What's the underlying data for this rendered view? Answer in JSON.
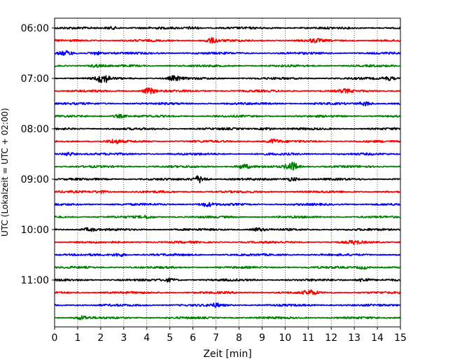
{
  "chart_data": {
    "type": "line",
    "title": "",
    "xlabel": "Zeit  [min]",
    "ylabel": "UTC (Lokalzeit = UTC + 02:00)",
    "xlim": [
      0,
      15
    ],
    "x_ticks": [
      "0",
      "1",
      "2",
      "3",
      "4",
      "5",
      "6",
      "7",
      "8",
      "9",
      "10",
      "11",
      "12",
      "13",
      "14",
      "15"
    ],
    "y_ticks": [
      "06:00",
      "07:00",
      "08:00",
      "09:00",
      "10:00",
      "11:00"
    ],
    "grid": "vertical dotted",
    "trace_interval_minutes": 15,
    "color_cycle": [
      "#000000",
      "#ff0000",
      "#0000ff",
      "#008000"
    ],
    "series": [
      {
        "start": "06:00",
        "color": "#000000",
        "events": [
          [
            2.5,
            1.0
          ],
          [
            6.0,
            1.0
          ]
        ]
      },
      {
        "start": "06:15",
        "color": "#ff0000",
        "events": [
          [
            6.8,
            2.0
          ],
          [
            11.3,
            1.3
          ]
        ]
      },
      {
        "start": "06:30",
        "color": "#0000ff",
        "events": [
          [
            0.5,
            1.6
          ],
          [
            1.8,
            1.3
          ]
        ]
      },
      {
        "start": "06:45",
        "color": "#008000",
        "events": [
          [
            1.8,
            1.0
          ]
        ]
      },
      {
        "start": "07:00",
        "color": "#000000",
        "events": [
          [
            2.1,
            3.5
          ],
          [
            5.2,
            1.8
          ],
          [
            14.5,
            1.4
          ]
        ]
      },
      {
        "start": "07:15",
        "color": "#ff0000",
        "events": [
          [
            4.1,
            2.5
          ],
          [
            12.6,
            1.2
          ]
        ]
      },
      {
        "start": "07:30",
        "color": "#0000ff",
        "events": [
          [
            13.5,
            1.6
          ]
        ]
      },
      {
        "start": "07:45",
        "color": "#008000",
        "events": [
          [
            2.8,
            1.3
          ]
        ]
      },
      {
        "start": "08:00",
        "color": "#000000",
        "events": [
          [
            9.2,
            1.0
          ]
        ]
      },
      {
        "start": "08:15",
        "color": "#ff0000",
        "events": [
          [
            2.6,
            1.4
          ],
          [
            9.5,
            1.6
          ]
        ]
      },
      {
        "start": "08:30",
        "color": "#0000ff",
        "events": [
          [
            0.6,
            1.4
          ]
        ]
      },
      {
        "start": "08:45",
        "color": "#008000",
        "events": [
          [
            8.2,
            1.8
          ],
          [
            10.3,
            3.6
          ]
        ]
      },
      {
        "start": "09:00",
        "color": "#000000",
        "events": [
          [
            6.3,
            3.0
          ],
          [
            10.3,
            1.5
          ]
        ]
      },
      {
        "start": "09:15",
        "color": "#ff0000",
        "events": [
          [
            2.0,
            1.0
          ]
        ]
      },
      {
        "start": "09:30",
        "color": "#0000ff",
        "events": [
          [
            6.6,
            1.5
          ]
        ]
      },
      {
        "start": "09:45",
        "color": "#008000",
        "events": [
          [
            4.0,
            1.0
          ]
        ]
      },
      {
        "start": "10:00",
        "color": "#000000",
        "events": [
          [
            1.5,
            1.3
          ],
          [
            8.8,
            1.3
          ]
        ]
      },
      {
        "start": "10:15",
        "color": "#ff0000",
        "events": [
          [
            13.0,
            1.2
          ]
        ]
      },
      {
        "start": "10:30",
        "color": "#0000ff",
        "events": [
          [
            2.8,
            1.3
          ]
        ]
      },
      {
        "start": "10:45",
        "color": "#008000",
        "events": [
          [
            13.4,
            1.2
          ]
        ]
      },
      {
        "start": "11:00",
        "color": "#000000",
        "events": [
          [
            5.0,
            1.2
          ],
          [
            13.4,
            1.6
          ]
        ]
      },
      {
        "start": "11:15",
        "color": "#ff0000",
        "events": [
          [
            11.1,
            1.8
          ]
        ]
      },
      {
        "start": "11:30",
        "color": "#0000ff",
        "events": [
          [
            7.0,
            1.3
          ]
        ]
      },
      {
        "start": "11:45",
        "color": "#008000",
        "events": [
          [
            1.2,
            1.5
          ]
        ]
      }
    ]
  }
}
